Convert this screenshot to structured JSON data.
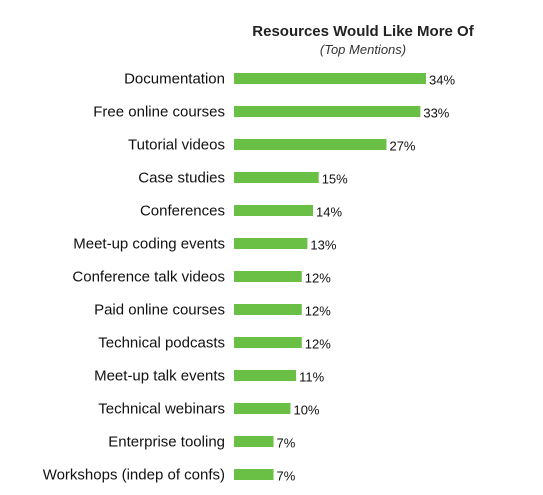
{
  "chart_data": {
    "type": "bar",
    "orientation": "horizontal",
    "title": "Resources Would Like More Of",
    "subtitle": "(Top Mentions)",
    "categories": [
      "Documentation",
      "Free online courses",
      "Tutorial videos",
      "Case studies",
      "Conferences",
      "Meet-up coding events",
      "Conference talk videos",
      "Paid online courses",
      "Technical podcasts",
      "Meet-up talk events",
      "Technical webinars",
      "Enterprise tooling",
      "Workshops (indep of confs)"
    ],
    "values": [
      34,
      33,
      27,
      15,
      14,
      13,
      12,
      12,
      12,
      11,
      10,
      7,
      7
    ],
    "value_labels": [
      "34%",
      "33%",
      "27%",
      "15%",
      "14%",
      "13%",
      "12%",
      "12%",
      "12%",
      "11%",
      "10%",
      "7%",
      "7%"
    ],
    "xlim": [
      0,
      34
    ],
    "grid": false,
    "legend": "none",
    "bar_color": "#6abf45"
  }
}
